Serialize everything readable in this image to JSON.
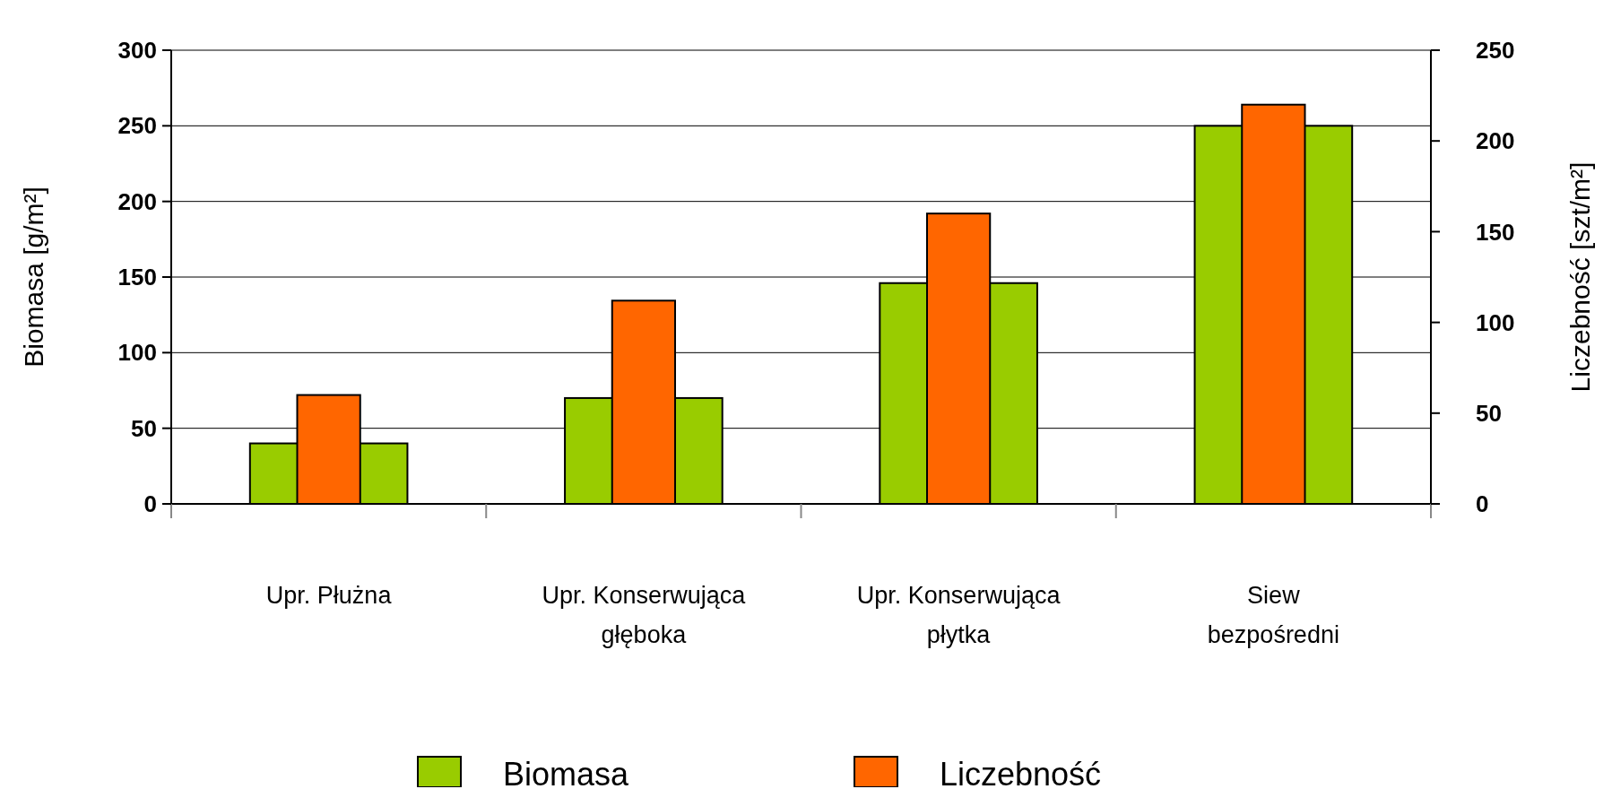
{
  "chart_data": {
    "type": "bar",
    "categories": [
      "Upr. Płużna",
      "Upr. Konserwująca\ngłęboka",
      "Upr. Konserwująca\npłytka",
      "Siew\nbezpośredni"
    ],
    "series": [
      {
        "name": "Biomasa",
        "color": "#99cc00",
        "values": [
          40,
          70,
          146,
          250
        ]
      },
      {
        "name": "Liczebność",
        "color": "#ff6600",
        "values": [
          60,
          112,
          160,
          220
        ],
        "axis": "y2"
      }
    ],
    "ylabel": "Biomasa [g/m²]",
    "y2label": "Liczebność [szt/m²]",
    "ylim": [
      0,
      300
    ],
    "yticks": [
      0,
      50,
      100,
      150,
      200,
      250,
      300
    ],
    "y2lim": [
      0,
      250
    ],
    "y2ticks": [
      0,
      50,
      100,
      150,
      200,
      250
    ],
    "grid": "y",
    "legend": "bottom"
  }
}
